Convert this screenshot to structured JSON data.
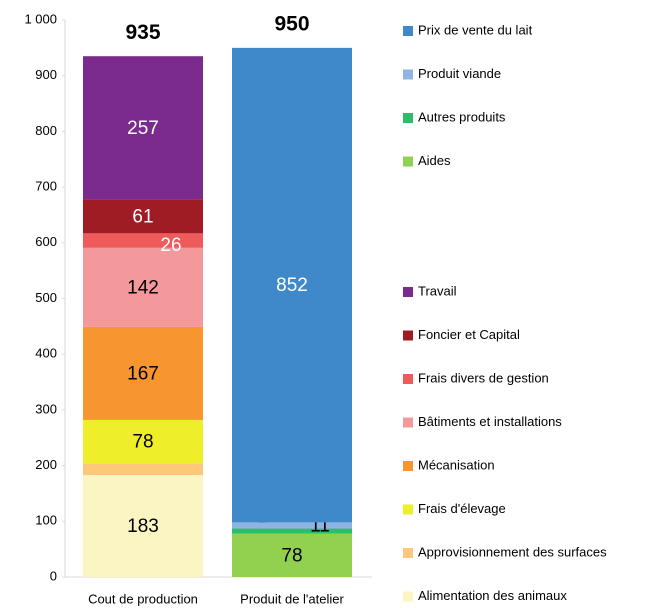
{
  "chart_data": {
    "type": "stacked_bar",
    "categories": [
      "Cout de production",
      "Produit de l'atelier"
    ],
    "totals": [
      935,
      950
    ],
    "series": [
      {
        "name": "Prix de vente du lait",
        "color": "#3f88c9",
        "label_color": "#ffffff",
        "values": [
          null,
          852
        ]
      },
      {
        "name": "Produit viande",
        "color": "#8db4e2",
        "label_color": "#000000",
        "values": [
          null,
          11
        ]
      },
      {
        "name": "Autres produits",
        "color": "#2ebd6b",
        "label_color": "#000000",
        "values": [
          null,
          9
        ]
      },
      {
        "name": "Aides",
        "color": "#92d050",
        "label_color": "#000000",
        "values": [
          null,
          78
        ]
      },
      {
        "name": "Travail",
        "color": "#7b2a8e",
        "label_color": "#ffffff",
        "values": [
          257,
          null
        ]
      },
      {
        "name": "Foncier et Capital",
        "color": "#a01c24",
        "label_color": "#ffffff",
        "values": [
          61,
          null
        ]
      },
      {
        "name": "Frais divers de gestion",
        "color": "#ef5b5b",
        "label_color": "#ffffff",
        "values": [
          26,
          null
        ]
      },
      {
        "name": "Bâtiments et installations",
        "color": "#f4999b",
        "label_color": "#000000",
        "values": [
          142,
          null
        ]
      },
      {
        "name": "Mécanisation",
        "color": "#f7952e",
        "label_color": "#000000",
        "values": [
          167,
          null
        ]
      },
      {
        "name": "Frais d'élevage",
        "color": "#eeee2a",
        "label_color": "#000000",
        "values": [
          78,
          null
        ]
      },
      {
        "name": "Approvisionnement des surfaces",
        "color": "#fdc87a",
        "label_color": "#000000",
        "values": [
          21,
          null
        ]
      },
      {
        "name": "Alimentation des animaux",
        "color": "#faf5c3",
        "label_color": "#000000",
        "values": [
          183,
          null
        ]
      }
    ],
    "ylim": [
      0,
      1000
    ],
    "yticks": [
      0,
      100,
      200,
      300,
      400,
      500,
      600,
      700,
      800,
      900,
      {
        "value": 1000,
        "label": "1 000"
      }
    ],
    "grid": false
  }
}
